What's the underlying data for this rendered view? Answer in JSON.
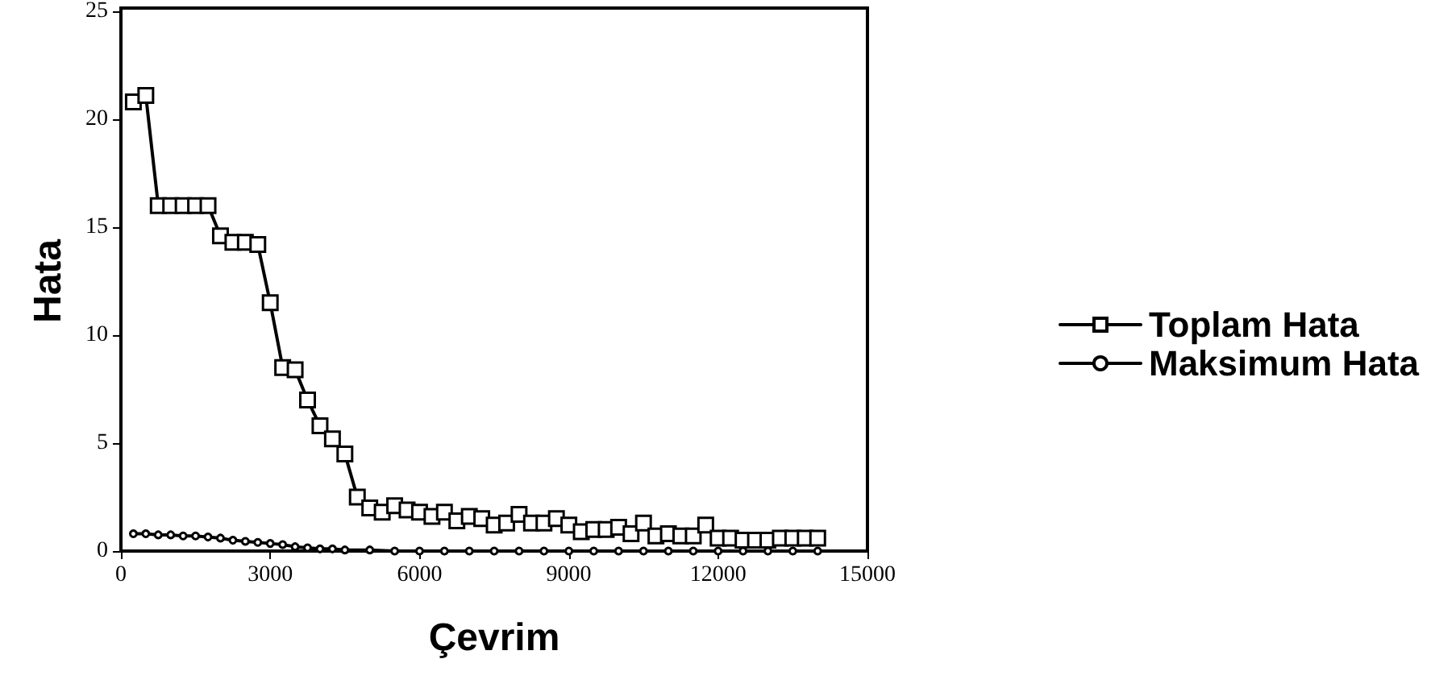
{
  "chart_data": {
    "type": "line",
    "xlabel": "Çevrim",
    "ylabel": "Hata",
    "xlim": [
      0,
      15000
    ],
    "ylim": [
      0,
      25
    ],
    "xticks": [
      0,
      3000,
      6000,
      9000,
      12000,
      15000
    ],
    "yticks": [
      0,
      5,
      10,
      15,
      20,
      25
    ],
    "grid": false,
    "legend": "right",
    "line_style": "solid",
    "series": [
      {
        "name": "Toplam Hata",
        "color": "#000000",
        "marker": "square",
        "x": [
          250,
          500,
          750,
          1000,
          1250,
          1500,
          1750,
          2000,
          2250,
          2500,
          2750,
          3000,
          3250,
          3500,
          3750,
          4000,
          4250,
          4500,
          4750,
          5000,
          5250,
          5500,
          5750,
          6000,
          6250,
          6500,
          6750,
          7000,
          7250,
          7500,
          7750,
          8000,
          8250,
          8500,
          8750,
          9000,
          9250,
          9500,
          9750,
          10000,
          10250,
          10500,
          10750,
          11000,
          11250,
          11500,
          11750,
          12000,
          12250,
          12500,
          12750,
          13000,
          13250,
          13500,
          13750,
          14000
        ],
        "values": [
          20.8,
          21.1,
          16.0,
          16.0,
          16.0,
          16.0,
          16.0,
          14.6,
          14.3,
          14.3,
          14.2,
          11.5,
          8.5,
          8.4,
          7.0,
          5.8,
          5.2,
          4.5,
          2.5,
          2.0,
          1.8,
          2.1,
          1.9,
          1.8,
          1.6,
          1.8,
          1.4,
          1.6,
          1.5,
          1.2,
          1.3,
          1.7,
          1.3,
          1.3,
          1.5,
          1.2,
          0.9,
          1.0,
          1.0,
          1.1,
          0.8,
          1.3,
          0.7,
          0.8,
          0.7,
          0.7,
          1.2,
          0.6,
          0.6,
          0.5,
          0.5,
          0.5,
          0.6,
          0.6,
          0.6,
          0.6
        ]
      },
      {
        "name": "Maksimum Hata",
        "color": "#000000",
        "marker": "circle",
        "x": [
          250,
          500,
          750,
          1000,
          1250,
          1500,
          1750,
          2000,
          2250,
          2500,
          2750,
          3000,
          3250,
          3500,
          3750,
          4000,
          4250,
          4500,
          5000,
          5500,
          6000,
          6500,
          7000,
          7500,
          8000,
          8500,
          9000,
          9500,
          10000,
          10500,
          11000,
          11500,
          12000,
          12500,
          13000,
          13500,
          14000
        ],
        "values": [
          0.8,
          0.8,
          0.75,
          0.75,
          0.7,
          0.7,
          0.65,
          0.6,
          0.5,
          0.45,
          0.4,
          0.35,
          0.3,
          0.2,
          0.15,
          0.1,
          0.1,
          0.05,
          0.05,
          0,
          0,
          0,
          0,
          0,
          0,
          0,
          0,
          0,
          0,
          0,
          0,
          0,
          0,
          0,
          0,
          0,
          0
        ]
      }
    ]
  }
}
